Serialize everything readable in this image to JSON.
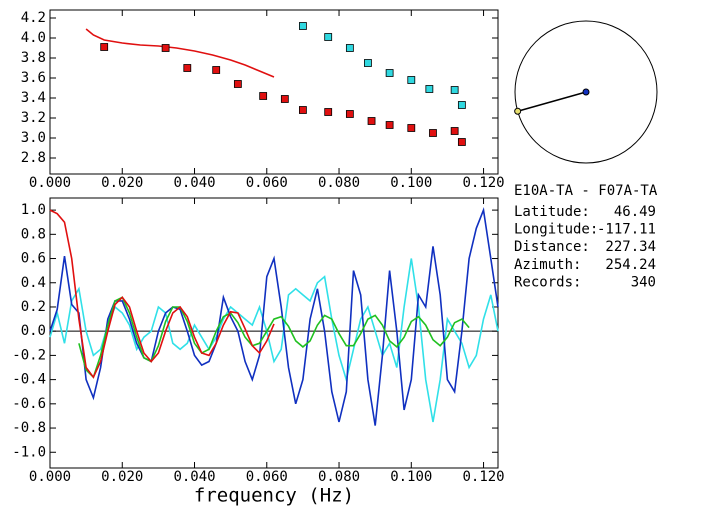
{
  "chart_data": [
    {
      "type": "scatter",
      "xlim": [
        0,
        0.124
      ],
      "ylim": [
        2.64,
        4.28
      ],
      "xticks": [
        {
          "value": 0,
          "label": "0.000"
        },
        {
          "value": 0.02,
          "label": "0.020"
        },
        {
          "value": 0.04,
          "label": "0.040"
        },
        {
          "value": 0.06,
          "label": "0.060"
        },
        {
          "value": 0.08,
          "label": "0.080"
        },
        {
          "value": 0.1,
          "label": "0.100"
        },
        {
          "value": 0.12,
          "label": "0.120"
        }
      ],
      "yticks": [
        {
          "value": 2.8,
          "label": "2.8"
        },
        {
          "value": 3,
          "label": "3.0"
        },
        {
          "value": 3.2,
          "label": "3.2"
        },
        {
          "value": 3.4,
          "label": "3.4"
        },
        {
          "value": 3.6,
          "label": "3.6"
        },
        {
          "value": 3.8,
          "label": "3.8"
        },
        {
          "value": 4,
          "label": "4.0"
        },
        {
          "value": 4.2,
          "label": "4.2"
        }
      ],
      "series": [
        {
          "mode": "line",
          "color": "#e01010",
          "x": [
            0.01,
            0.012,
            0.015,
            0.02,
            0.025,
            0.03,
            0.035,
            0.04,
            0.045,
            0.05,
            0.054,
            0.058,
            0.062
          ],
          "values": [
            4.09,
            4.03,
            3.98,
            3.95,
            3.93,
            3.92,
            3.9,
            3.87,
            3.83,
            3.78,
            3.73,
            3.67,
            3.61
          ]
        },
        {
          "mode": "markers",
          "color": "#e01010",
          "x": [
            0.015,
            0.032,
            0.038,
            0.046,
            0.052,
            0.059,
            0.065,
            0.07,
            0.077,
            0.083,
            0.089,
            0.094,
            0.1,
            0.106,
            0.112,
            0.114
          ],
          "values": [
            3.91,
            3.9,
            3.7,
            3.68,
            3.54,
            3.42,
            3.39,
            3.28,
            3.26,
            3.24,
            3.17,
            3.13,
            3.1,
            3.05,
            3.07,
            2.96
          ]
        },
        {
          "mode": "markers",
          "color": "#30d8e0",
          "x": [
            0.07,
            0.077,
            0.083,
            0.088,
            0.094,
            0.1,
            0.105,
            0.112,
            0.114
          ],
          "values": [
            4.12,
            4.01,
            3.9,
            3.75,
            3.65,
            3.58,
            3.49,
            3.48,
            3.33
          ]
        }
      ]
    },
    {
      "type": "line",
      "x_label": "frequency (Hz)",
      "xlim": [
        0,
        0.124
      ],
      "ylim": [
        -1.13,
        1.1
      ],
      "xticks": [
        {
          "value": 0,
          "label": "0.000"
        },
        {
          "value": 0.02,
          "label": "0.020"
        },
        {
          "value": 0.04,
          "label": "0.040"
        },
        {
          "value": 0.06,
          "label": "0.060"
        },
        {
          "value": 0.08,
          "label": "0.080"
        },
        {
          "value": 0.1,
          "label": "0.100"
        },
        {
          "value": 0.12,
          "label": "0.120"
        }
      ],
      "yticks": [
        {
          "value": -1,
          "label": "-1.0"
        },
        {
          "value": -0.8,
          "label": "-0.8"
        },
        {
          "value": -0.6,
          "label": "-0.6"
        },
        {
          "value": -0.4,
          "label": "-0.4"
        },
        {
          "value": -0.2,
          "label": "-0.2"
        },
        {
          "value": 0,
          "label": "0.0"
        },
        {
          "value": 0.2,
          "label": "0.2"
        },
        {
          "value": 0.4,
          "label": "0.4"
        },
        {
          "value": 0.6,
          "label": "0.6"
        },
        {
          "value": 0.8,
          "label": "0.8"
        },
        {
          "value": 1,
          "label": "1.0"
        }
      ],
      "zero_line": true,
      "series": [
        {
          "color": "#30e0e8",
          "x": [
            0,
            0.002,
            0.004,
            0.006,
            0.008,
            0.01,
            0.012,
            0.014,
            0.016,
            0.018,
            0.02,
            0.022,
            0.024,
            0.026,
            0.028,
            0.03,
            0.032,
            0.034,
            0.036,
            0.038,
            0.04,
            0.042,
            0.044,
            0.046,
            0.048,
            0.05,
            0.052,
            0.054,
            0.056,
            0.058,
            0.06,
            0.062,
            0.064,
            0.066,
            0.068,
            0.07,
            0.072,
            0.074,
            0.076,
            0.078,
            0.08,
            0.082,
            0.084,
            0.086,
            0.088,
            0.09,
            0.092,
            0.094,
            0.096,
            0.098,
            0.1,
            0.102,
            0.104,
            0.106,
            0.108,
            0.11,
            0.112,
            0.114,
            0.116,
            0.118,
            0.12,
            0.122,
            0.124
          ],
          "values": [
            -0.05,
            0.15,
            -0.1,
            0.25,
            0.35,
            0.0,
            -0.2,
            -0.15,
            0.05,
            0.2,
            0.15,
            0.05,
            -0.15,
            -0.05,
            0.0,
            0.2,
            0.15,
            -0.1,
            -0.15,
            -0.1,
            0.05,
            -0.05,
            -0.15,
            -0.05,
            0.1,
            0.2,
            0.15,
            0.1,
            0.05,
            0.2,
            0.0,
            -0.25,
            -0.15,
            0.3,
            0.35,
            0.3,
            0.25,
            0.4,
            0.45,
            0.1,
            -0.2,
            -0.4,
            -0.15,
            0.1,
            0.2,
            0.0,
            -0.2,
            -0.1,
            -0.3,
            0.2,
            0.6,
            0.2,
            -0.4,
            -0.75,
            -0.4,
            0.1,
            0.0,
            -0.1,
            -0.3,
            -0.2,
            0.1,
            0.3,
            0.0
          ]
        },
        {
          "color": "#1030c0",
          "x": [
            0,
            0.002,
            0.004,
            0.006,
            0.008,
            0.01,
            0.012,
            0.014,
            0.016,
            0.018,
            0.02,
            0.022,
            0.024,
            0.026,
            0.028,
            0.03,
            0.032,
            0.034,
            0.036,
            0.038,
            0.04,
            0.042,
            0.044,
            0.046,
            0.048,
            0.05,
            0.052,
            0.054,
            0.056,
            0.058,
            0.06,
            0.062,
            0.064,
            0.066,
            0.068,
            0.07,
            0.072,
            0.074,
            0.076,
            0.078,
            0.08,
            0.082,
            0.084,
            0.086,
            0.088,
            0.09,
            0.092,
            0.094,
            0.096,
            0.098,
            0.1,
            0.102,
            0.104,
            0.106,
            0.108,
            0.11,
            0.112,
            0.114,
            0.116,
            0.118,
            0.12,
            0.122,
            0.124
          ],
          "values": [
            0.0,
            0.18,
            0.62,
            0.22,
            0.15,
            -0.4,
            -0.55,
            -0.3,
            0.1,
            0.25,
            0.25,
            0.1,
            -0.1,
            -0.22,
            -0.25,
            0.0,
            0.15,
            0.2,
            0.18,
            0.0,
            -0.2,
            -0.28,
            -0.25,
            -0.1,
            0.28,
            0.12,
            0.0,
            -0.25,
            -0.4,
            -0.2,
            0.45,
            0.6,
            0.2,
            -0.3,
            -0.6,
            -0.4,
            0.1,
            0.35,
            0.0,
            -0.5,
            -0.75,
            -0.5,
            0.5,
            0.3,
            -0.4,
            -0.78,
            -0.2,
            0.5,
            0.0,
            -0.65,
            -0.4,
            0.3,
            0.2,
            0.7,
            0.3,
            -0.4,
            -0.5,
            0.0,
            0.6,
            0.85,
            1.0,
            0.6,
            0.2
          ]
        },
        {
          "color": "#20c020",
          "x": [
            0.008,
            0.01,
            0.012,
            0.014,
            0.016,
            0.018,
            0.02,
            0.022,
            0.024,
            0.026,
            0.028,
            0.03,
            0.032,
            0.034,
            0.036,
            0.038,
            0.04,
            0.042,
            0.044,
            0.046,
            0.048,
            0.05,
            0.052,
            0.054,
            0.056,
            0.058,
            0.06,
            0.062,
            0.064,
            0.066,
            0.068,
            0.07,
            0.072,
            0.074,
            0.076,
            0.078,
            0.08,
            0.082,
            0.084,
            0.086,
            0.088,
            0.09,
            0.092,
            0.094,
            0.096,
            0.098,
            0.1,
            0.102,
            0.104,
            0.106,
            0.108,
            0.11,
            0.112,
            0.114,
            0.116
          ],
          "values": [
            -0.1,
            -0.32,
            -0.38,
            -0.2,
            0.05,
            0.25,
            0.28,
            0.15,
            -0.05,
            -0.22,
            -0.25,
            -0.12,
            0.08,
            0.2,
            0.2,
            0.08,
            -0.1,
            -0.18,
            -0.15,
            0.0,
            0.12,
            0.15,
            0.07,
            -0.05,
            -0.12,
            -0.1,
            0.0,
            0.1,
            0.12,
            0.04,
            -0.08,
            -0.13,
            -0.08,
            0.05,
            0.13,
            0.1,
            -0.02,
            -0.12,
            -0.12,
            -0.02,
            0.1,
            0.13,
            0.05,
            -0.08,
            -0.13,
            -0.05,
            0.08,
            0.12,
            0.05,
            -0.07,
            -0.12,
            -0.05,
            0.07,
            0.1,
            0.03
          ]
        },
        {
          "color": "#e01010",
          "x": [
            0,
            0.002,
            0.004,
            0.006,
            0.008,
            0.01,
            0.012,
            0.014,
            0.016,
            0.018,
            0.02,
            0.022,
            0.024,
            0.026,
            0.028,
            0.03,
            0.032,
            0.034,
            0.036,
            0.038,
            0.04,
            0.042,
            0.044,
            0.046,
            0.048,
            0.05,
            0.052,
            0.054,
            0.056,
            0.058,
            0.06,
            0.062
          ],
          "values": [
            1.0,
            0.97,
            0.9,
            0.6,
            0.1,
            -0.3,
            -0.38,
            -0.25,
            0.0,
            0.22,
            0.28,
            0.2,
            0.0,
            -0.18,
            -0.25,
            -0.18,
            0.0,
            0.15,
            0.2,
            0.12,
            -0.05,
            -0.18,
            -0.2,
            -0.1,
            0.05,
            0.16,
            0.15,
            0.02,
            -0.12,
            -0.18,
            -0.08,
            0.06
          ]
        }
      ]
    }
  ],
  "station_info": {
    "title": "E10A-TA - F07A-TA",
    "rows": [
      {
        "label": "Latitude:",
        "value": 46.49
      },
      {
        "label": "Longitude:",
        "value": -117.11
      },
      {
        "label": "Distance:",
        "value": 227.34
      },
      {
        "label": "Azimuth:",
        "value": 254.24
      },
      {
        "label": "Records:",
        "value": 340
      }
    ]
  }
}
